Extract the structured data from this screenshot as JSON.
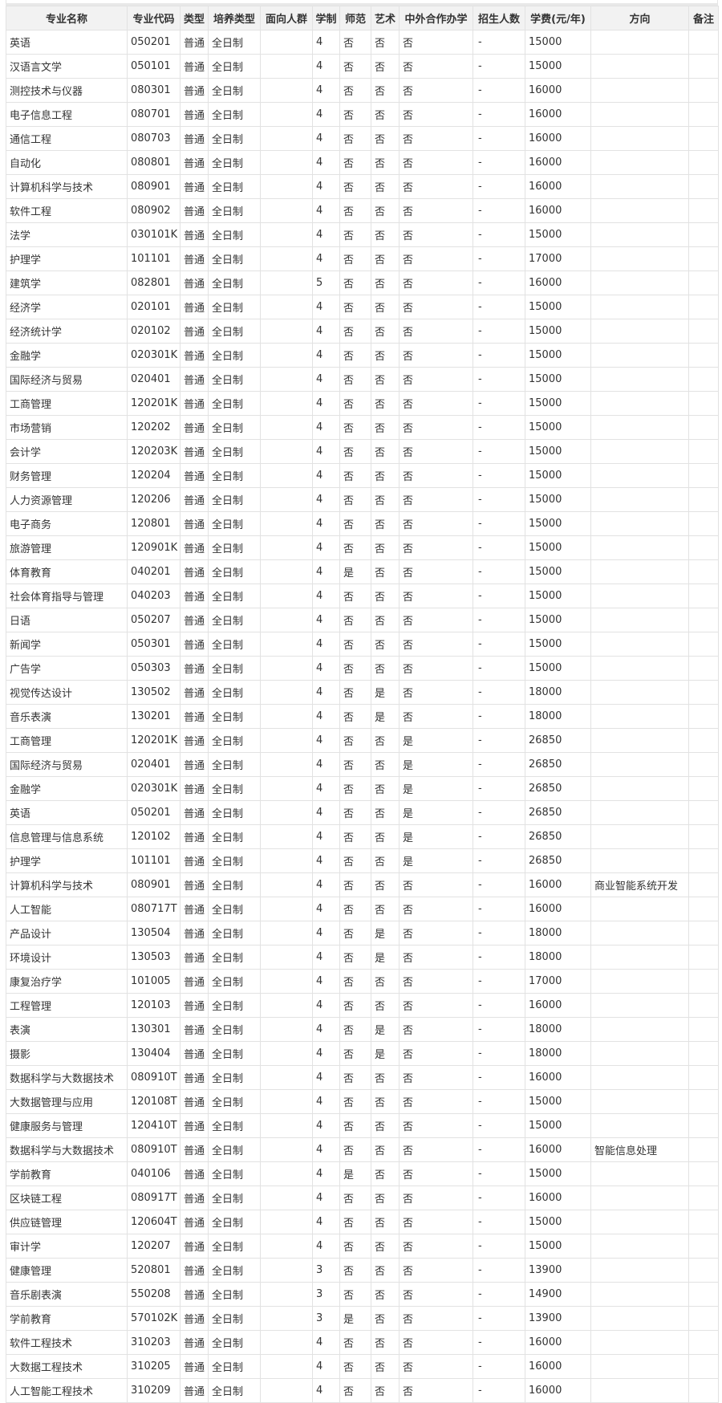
{
  "columns": [
    "专业名称",
    "专业代码",
    "类型",
    "培养类型",
    "面向人群",
    "学制",
    "师范",
    "艺术",
    "中外合作办学",
    "招生人数",
    "学费(元/年)",
    "方向",
    "备注"
  ],
  "rows": [
    [
      "英语",
      "050201",
      "普通",
      "全日制",
      "",
      "4",
      "否",
      "否",
      "否",
      "-",
      "15000",
      "",
      ""
    ],
    [
      "汉语言文学",
      "050101",
      "普通",
      "全日制",
      "",
      "4",
      "否",
      "否",
      "否",
      "-",
      "15000",
      "",
      ""
    ],
    [
      "测控技术与仪器",
      "080301",
      "普通",
      "全日制",
      "",
      "4",
      "否",
      "否",
      "否",
      "-",
      "16000",
      "",
      ""
    ],
    [
      "电子信息工程",
      "080701",
      "普通",
      "全日制",
      "",
      "4",
      "否",
      "否",
      "否",
      "-",
      "16000",
      "",
      ""
    ],
    [
      "通信工程",
      "080703",
      "普通",
      "全日制",
      "",
      "4",
      "否",
      "否",
      "否",
      "-",
      "16000",
      "",
      ""
    ],
    [
      "自动化",
      "080801",
      "普通",
      "全日制",
      "",
      "4",
      "否",
      "否",
      "否",
      "-",
      "16000",
      "",
      ""
    ],
    [
      "计算机科学与技术",
      "080901",
      "普通",
      "全日制",
      "",
      "4",
      "否",
      "否",
      "否",
      "-",
      "16000",
      "",
      ""
    ],
    [
      "软件工程",
      "080902",
      "普通",
      "全日制",
      "",
      "4",
      "否",
      "否",
      "否",
      "-",
      "16000",
      "",
      ""
    ],
    [
      "法学",
      "030101K",
      "普通",
      "全日制",
      "",
      "4",
      "否",
      "否",
      "否",
      "-",
      "15000",
      "",
      ""
    ],
    [
      "护理学",
      "101101",
      "普通",
      "全日制",
      "",
      "4",
      "否",
      "否",
      "否",
      "-",
      "17000",
      "",
      ""
    ],
    [
      "建筑学",
      "082801",
      "普通",
      "全日制",
      "",
      "5",
      "否",
      "否",
      "否",
      "-",
      "16000",
      "",
      ""
    ],
    [
      "经济学",
      "020101",
      "普通",
      "全日制",
      "",
      "4",
      "否",
      "否",
      "否",
      "-",
      "15000",
      "",
      ""
    ],
    [
      "经济统计学",
      "020102",
      "普通",
      "全日制",
      "",
      "4",
      "否",
      "否",
      "否",
      "-",
      "15000",
      "",
      ""
    ],
    [
      "金融学",
      "020301K",
      "普通",
      "全日制",
      "",
      "4",
      "否",
      "否",
      "否",
      "-",
      "15000",
      "",
      ""
    ],
    [
      "国际经济与贸易",
      "020401",
      "普通",
      "全日制",
      "",
      "4",
      "否",
      "否",
      "否",
      "-",
      "15000",
      "",
      ""
    ],
    [
      "工商管理",
      "120201K",
      "普通",
      "全日制",
      "",
      "4",
      "否",
      "否",
      "否",
      "-",
      "15000",
      "",
      ""
    ],
    [
      "市场营销",
      "120202",
      "普通",
      "全日制",
      "",
      "4",
      "否",
      "否",
      "否",
      "-",
      "15000",
      "",
      ""
    ],
    [
      "会计学",
      "120203K",
      "普通",
      "全日制",
      "",
      "4",
      "否",
      "否",
      "否",
      "-",
      "15000",
      "",
      ""
    ],
    [
      "财务管理",
      "120204",
      "普通",
      "全日制",
      "",
      "4",
      "否",
      "否",
      "否",
      "-",
      "15000",
      "",
      ""
    ],
    [
      "人力资源管理",
      "120206",
      "普通",
      "全日制",
      "",
      "4",
      "否",
      "否",
      "否",
      "-",
      "15000",
      "",
      ""
    ],
    [
      "电子商务",
      "120801",
      "普通",
      "全日制",
      "",
      "4",
      "否",
      "否",
      "否",
      "-",
      "15000",
      "",
      ""
    ],
    [
      "旅游管理",
      "120901K",
      "普通",
      "全日制",
      "",
      "4",
      "否",
      "否",
      "否",
      "-",
      "15000",
      "",
      ""
    ],
    [
      "体育教育",
      "040201",
      "普通",
      "全日制",
      "",
      "4",
      "是",
      "否",
      "否",
      "-",
      "15000",
      "",
      ""
    ],
    [
      "社会体育指导与管理",
      "040203",
      "普通",
      "全日制",
      "",
      "4",
      "否",
      "否",
      "否",
      "-",
      "15000",
      "",
      ""
    ],
    [
      "日语",
      "050207",
      "普通",
      "全日制",
      "",
      "4",
      "否",
      "否",
      "否",
      "-",
      "15000",
      "",
      ""
    ],
    [
      "新闻学",
      "050301",
      "普通",
      "全日制",
      "",
      "4",
      "否",
      "否",
      "否",
      "-",
      "15000",
      "",
      ""
    ],
    [
      "广告学",
      "050303",
      "普通",
      "全日制",
      "",
      "4",
      "否",
      "否",
      "否",
      "-",
      "15000",
      "",
      ""
    ],
    [
      "视觉传达设计",
      "130502",
      "普通",
      "全日制",
      "",
      "4",
      "否",
      "是",
      "否",
      "-",
      "18000",
      "",
      ""
    ],
    [
      "音乐表演",
      "130201",
      "普通",
      "全日制",
      "",
      "4",
      "否",
      "是",
      "否",
      "-",
      "18000",
      "",
      ""
    ],
    [
      "工商管理",
      "120201K",
      "普通",
      "全日制",
      "",
      "4",
      "否",
      "否",
      "是",
      "-",
      "26850",
      "",
      ""
    ],
    [
      "国际经济与贸易",
      "020401",
      "普通",
      "全日制",
      "",
      "4",
      "否",
      "否",
      "是",
      "-",
      "26850",
      "",
      ""
    ],
    [
      "金融学",
      "020301K",
      "普通",
      "全日制",
      "",
      "4",
      "否",
      "否",
      "是",
      "-",
      "26850",
      "",
      ""
    ],
    [
      "英语",
      "050201",
      "普通",
      "全日制",
      "",
      "4",
      "否",
      "否",
      "是",
      "-",
      "26850",
      "",
      ""
    ],
    [
      "信息管理与信息系统",
      "120102",
      "普通",
      "全日制",
      "",
      "4",
      "否",
      "否",
      "是",
      "-",
      "26850",
      "",
      ""
    ],
    [
      "护理学",
      "101101",
      "普通",
      "全日制",
      "",
      "4",
      "否",
      "否",
      "是",
      "-",
      "26850",
      "",
      ""
    ],
    [
      "计算机科学与技术",
      "080901",
      "普通",
      "全日制",
      "",
      "4",
      "否",
      "否",
      "否",
      "-",
      "16000",
      "商业智能系统开发",
      ""
    ],
    [
      "人工智能",
      "080717T",
      "普通",
      "全日制",
      "",
      "4",
      "否",
      "否",
      "否",
      "-",
      "16000",
      "",
      ""
    ],
    [
      "产品设计",
      "130504",
      "普通",
      "全日制",
      "",
      "4",
      "否",
      "是",
      "否",
      "-",
      "18000",
      "",
      ""
    ],
    [
      "环境设计",
      "130503",
      "普通",
      "全日制",
      "",
      "4",
      "否",
      "是",
      "否",
      "-",
      "18000",
      "",
      ""
    ],
    [
      "康复治疗学",
      "101005",
      "普通",
      "全日制",
      "",
      "4",
      "否",
      "否",
      "否",
      "-",
      "17000",
      "",
      ""
    ],
    [
      "工程管理",
      "120103",
      "普通",
      "全日制",
      "",
      "4",
      "否",
      "否",
      "否",
      "-",
      "16000",
      "",
      ""
    ],
    [
      "表演",
      "130301",
      "普通",
      "全日制",
      "",
      "4",
      "否",
      "是",
      "否",
      "-",
      "18000",
      "",
      ""
    ],
    [
      "摄影",
      "130404",
      "普通",
      "全日制",
      "",
      "4",
      "否",
      "是",
      "否",
      "-",
      "18000",
      "",
      ""
    ],
    [
      "数据科学与大数据技术",
      "080910T",
      "普通",
      "全日制",
      "",
      "4",
      "否",
      "否",
      "否",
      "-",
      "16000",
      "",
      ""
    ],
    [
      "大数据管理与应用",
      "120108T",
      "普通",
      "全日制",
      "",
      "4",
      "否",
      "否",
      "否",
      "-",
      "15000",
      "",
      ""
    ],
    [
      "健康服务与管理",
      "120410T",
      "普通",
      "全日制",
      "",
      "4",
      "否",
      "否",
      "否",
      "-",
      "15000",
      "",
      ""
    ],
    [
      "数据科学与大数据技术",
      "080910T",
      "普通",
      "全日制",
      "",
      "4",
      "否",
      "否",
      "否",
      "-",
      "16000",
      "智能信息处理",
      ""
    ],
    [
      "学前教育",
      "040106",
      "普通",
      "全日制",
      "",
      "4",
      "是",
      "否",
      "否",
      "-",
      "15000",
      "",
      ""
    ],
    [
      "区块链工程",
      "080917T",
      "普通",
      "全日制",
      "",
      "4",
      "否",
      "否",
      "否",
      "-",
      "16000",
      "",
      ""
    ],
    [
      "供应链管理",
      "120604T",
      "普通",
      "全日制",
      "",
      "4",
      "否",
      "否",
      "否",
      "-",
      "15000",
      "",
      ""
    ],
    [
      "审计学",
      "120207",
      "普通",
      "全日制",
      "",
      "4",
      "否",
      "否",
      "否",
      "-",
      "15000",
      "",
      ""
    ],
    [
      "健康管理",
      "520801",
      "普通",
      "全日制",
      "",
      "3",
      "否",
      "否",
      "否",
      "-",
      "13900",
      "",
      ""
    ],
    [
      "音乐剧表演",
      "550208",
      "普通",
      "全日制",
      "",
      "3",
      "否",
      "否",
      "否",
      "-",
      "14900",
      "",
      ""
    ],
    [
      "学前教育",
      "570102K",
      "普通",
      "全日制",
      "",
      "3",
      "是",
      "否",
      "否",
      "-",
      "13900",
      "",
      ""
    ],
    [
      "软件工程技术",
      "310203",
      "普通",
      "全日制",
      "",
      "4",
      "否",
      "否",
      "否",
      "-",
      "16000",
      "",
      ""
    ],
    [
      "大数据工程技术",
      "310205",
      "普通",
      "全日制",
      "",
      "4",
      "否",
      "否",
      "否",
      "-",
      "16000",
      "",
      ""
    ],
    [
      "人工智能工程技术",
      "310209",
      "普通",
      "全日制",
      "",
      "4",
      "否",
      "否",
      "否",
      "-",
      "16000",
      "",
      ""
    ]
  ]
}
